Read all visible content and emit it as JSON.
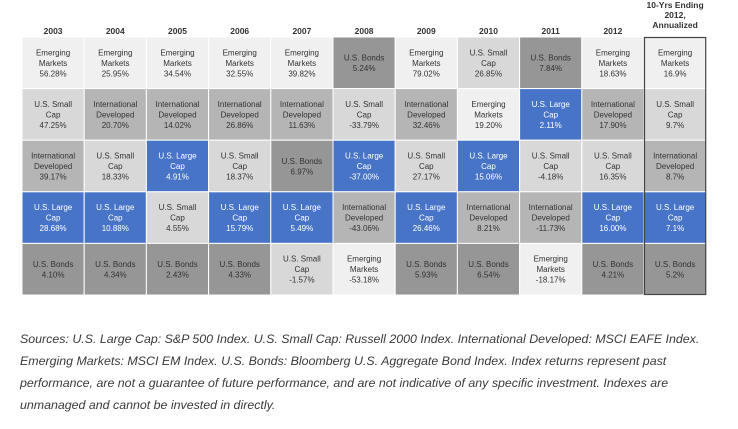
{
  "colors": {
    "U.S. Large Cap": "#4874c8",
    "U.S. Small Cap": "#d8d8d8",
    "International Developed": "#b5b5b5",
    "Emerging Markets": "#f0f0f0",
    "U.S. Bonds": "#969696"
  },
  "text_colors": {
    "U.S. Large Cap": "#ffffff",
    "U.S. Small Cap": "#333333",
    "International Developed": "#333333",
    "Emerging Markets": "#333333",
    "U.S. Bonds": "#333333"
  },
  "display_labels": {
    "U.S. Large Cap": [
      "U.S. Large",
      "Cap"
    ],
    "U.S. Small Cap": [
      "U.S. Small",
      "Cap"
    ],
    "International Developed": [
      "International",
      "Developed"
    ],
    "Emerging Markets": [
      "Emerging",
      "Markets"
    ],
    "U.S. Bonds": [
      "U.S. Bonds"
    ]
  },
  "chart_data": {
    "type": "table",
    "columns": [
      "2003",
      "2004",
      "2005",
      "2006",
      "2007",
      "2008",
      "2009",
      "2010",
      "2011",
      "2012",
      "10-Yrs Ending 2012, Annualized"
    ],
    "column_header_lines": [
      [
        "2003"
      ],
      [
        "2004"
      ],
      [
        "2005"
      ],
      [
        "2006"
      ],
      [
        "2007"
      ],
      [
        "2008"
      ],
      [
        "2009"
      ],
      [
        "2010"
      ],
      [
        "2011"
      ],
      [
        "2012"
      ],
      [
        "10-Yrs Ending",
        "2012,",
        "Annualized"
      ]
    ],
    "rows": [
      [
        {
          "asset": "Emerging Markets",
          "value": "56.28%"
        },
        {
          "asset": "Emerging Markets",
          "value": "25.95%"
        },
        {
          "asset": "Emerging Markets",
          "value": "34.54%"
        },
        {
          "asset": "Emerging Markets",
          "value": "32.55%"
        },
        {
          "asset": "Emerging Markets",
          "value": "39.82%"
        },
        {
          "asset": "U.S. Bonds",
          "value": "5.24%"
        },
        {
          "asset": "Emerging Markets",
          "value": "79.02%"
        },
        {
          "asset": "U.S. Small Cap",
          "value": "26.85%"
        },
        {
          "asset": "U.S. Bonds",
          "value": "7.84%"
        },
        {
          "asset": "Emerging Markets",
          "value": "18.63%"
        },
        {
          "asset": "Emerging Markets",
          "value": "16.9%"
        }
      ],
      [
        {
          "asset": "U.S. Small Cap",
          "value": "47.25%"
        },
        {
          "asset": "International Developed",
          "value": "20.70%"
        },
        {
          "asset": "International Developed",
          "value": "14.02%"
        },
        {
          "asset": "International Developed",
          "value": "26.86%"
        },
        {
          "asset": "International Developed",
          "value": "11.63%"
        },
        {
          "asset": "U.S. Small Cap",
          "value": "-33.79%"
        },
        {
          "asset": "International Developed",
          "value": "32.46%"
        },
        {
          "asset": "Emerging Markets",
          "value": "19.20%"
        },
        {
          "asset": "U.S. Large Cap",
          "value": "2.11%"
        },
        {
          "asset": "International Developed",
          "value": "17.90%"
        },
        {
          "asset": "U.S. Small Cap",
          "value": "9.7%"
        }
      ],
      [
        {
          "asset": "International Developed",
          "value": "39.17%"
        },
        {
          "asset": "U.S. Small Cap",
          "value": "18.33%"
        },
        {
          "asset": "U.S. Large Cap",
          "value": "4.91%"
        },
        {
          "asset": "U.S. Small Cap",
          "value": "18.37%"
        },
        {
          "asset": "U.S. Bonds",
          "value": "6.97%"
        },
        {
          "asset": "U.S. Large Cap",
          "value": "-37.00%"
        },
        {
          "asset": "U.S. Small Cap",
          "value": "27.17%"
        },
        {
          "asset": "U.S. Large Cap",
          "value": "15.06%"
        },
        {
          "asset": "U.S. Small Cap",
          "value": "-4.18%"
        },
        {
          "asset": "U.S. Small Cap",
          "value": "16.35%"
        },
        {
          "asset": "International Developed",
          "value": "8.7%"
        }
      ],
      [
        {
          "asset": "U.S. Large Cap",
          "value": "28.68%"
        },
        {
          "asset": "U.S. Large Cap",
          "value": "10.88%"
        },
        {
          "asset": "U.S. Small Cap",
          "value": "4.55%"
        },
        {
          "asset": "U.S. Large Cap",
          "value": "15.79%"
        },
        {
          "asset": "U.S. Large Cap",
          "value": "5.49%"
        },
        {
          "asset": "International Developed",
          "value": "-43.06%"
        },
        {
          "asset": "U.S. Large Cap",
          "value": "26.46%"
        },
        {
          "asset": "International Developed",
          "value": "8.21%"
        },
        {
          "asset": "International Developed",
          "value": "-11.73%"
        },
        {
          "asset": "U.S. Large Cap",
          "value": "16.00%"
        },
        {
          "asset": "U.S. Large Cap",
          "value": "7.1%"
        }
      ],
      [
        {
          "asset": "U.S. Bonds",
          "value": "4.10%"
        },
        {
          "asset": "U.S. Bonds",
          "value": "4.34%"
        },
        {
          "asset": "U.S. Bonds",
          "value": "2.43%"
        },
        {
          "asset": "U.S. Bonds",
          "value": "4.33%"
        },
        {
          "asset": "U.S. Small Cap",
          "value": "-1.57%"
        },
        {
          "asset": "Emerging Markets",
          "value": "-53.18%"
        },
        {
          "asset": "U.S. Bonds",
          "value": "5.93%"
        },
        {
          "asset": "U.S. Bonds",
          "value": "6.54%"
        },
        {
          "asset": "Emerging Markets",
          "value": "-18.17%"
        },
        {
          "asset": "U.S. Bonds",
          "value": "4.21%"
        },
        {
          "asset": "U.S. Bonds",
          "value": "5.2%"
        }
      ]
    ]
  },
  "sources_text": "Sources: U.S. Large Cap: S&P 500 Index. U.S. Small Cap: Russell 2000 Index. International Developed: MSCI EAFE Index. Emerging Markets: MSCI EM Index. U.S. Bonds: Bloomberg U.S. Aggregate Bond Index. Index returns represent past performance, are not a guarantee of future performance, and are not indicative of any specific investment. Indexes are unmanaged and cannot be invested in directly."
}
